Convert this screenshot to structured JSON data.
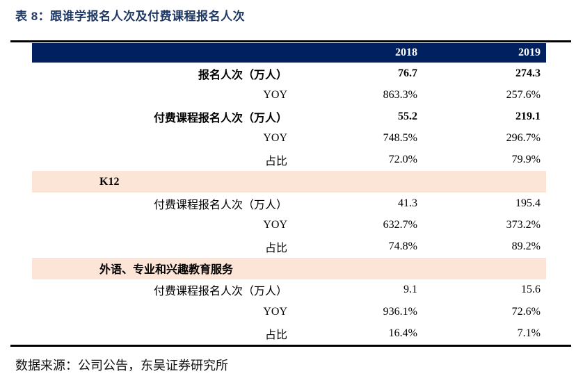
{
  "page": {
    "title": "表 8：跟谁学报名人次及付费课程报名人次",
    "source_note": "数据来源：公司公告，东吴证券研究所"
  },
  "colors": {
    "title_text": "#1F3864",
    "header_bg": "#002060",
    "header_text": "#FFFFFF",
    "section_row_bg": "#FCE4D6",
    "rule": "#000000"
  },
  "table": {
    "columns": [
      {
        "key": "label",
        "label": ""
      },
      {
        "key": "y2018",
        "label": "2018"
      },
      {
        "key": "y2019",
        "label": "2019"
      }
    ],
    "rows": [
      {
        "label": "报名人次（万人）",
        "v2018": "76.7",
        "v2019": "274.3",
        "bold": true,
        "highlight": false,
        "section": false
      },
      {
        "label": "YOY",
        "v2018": "863.3%",
        "v2019": "257.6%",
        "bold": false,
        "highlight": false,
        "section": false
      },
      {
        "label": "付费课程报名人次（万人）",
        "v2018": "55.2",
        "v2019": "219.1",
        "bold": true,
        "highlight": false,
        "section": false
      },
      {
        "label": "YOY",
        "v2018": "748.5%",
        "v2019": "296.7%",
        "bold": false,
        "highlight": false,
        "section": false
      },
      {
        "label": "占比",
        "v2018": "72.0%",
        "v2019": "79.9%",
        "bold": false,
        "highlight": false,
        "section": false
      },
      {
        "label": "K12",
        "v2018": "",
        "v2019": "",
        "bold": true,
        "highlight": true,
        "section": true
      },
      {
        "label": "付费课程报名人次（万人）",
        "v2018": "41.3",
        "v2019": "195.4",
        "bold": false,
        "highlight": false,
        "section": false
      },
      {
        "label": "YOY",
        "v2018": "632.7%",
        "v2019": "373.2%",
        "bold": false,
        "highlight": false,
        "section": false
      },
      {
        "label": "占比",
        "v2018": "74.8%",
        "v2019": "89.2%",
        "bold": false,
        "highlight": false,
        "section": false
      },
      {
        "label": "外语、专业和兴趣教育服务",
        "v2018": "",
        "v2019": "",
        "bold": true,
        "highlight": true,
        "section": true
      },
      {
        "label": "付费课程报名人次（万人）",
        "v2018": "9.1",
        "v2019": "15.6",
        "bold": false,
        "highlight": false,
        "section": false
      },
      {
        "label": "YOY",
        "v2018": "936.1%",
        "v2019": "72.6%",
        "bold": false,
        "highlight": false,
        "section": false
      },
      {
        "label": "占比",
        "v2018": "16.4%",
        "v2019": "7.1%",
        "bold": false,
        "highlight": false,
        "section": false
      }
    ]
  }
}
